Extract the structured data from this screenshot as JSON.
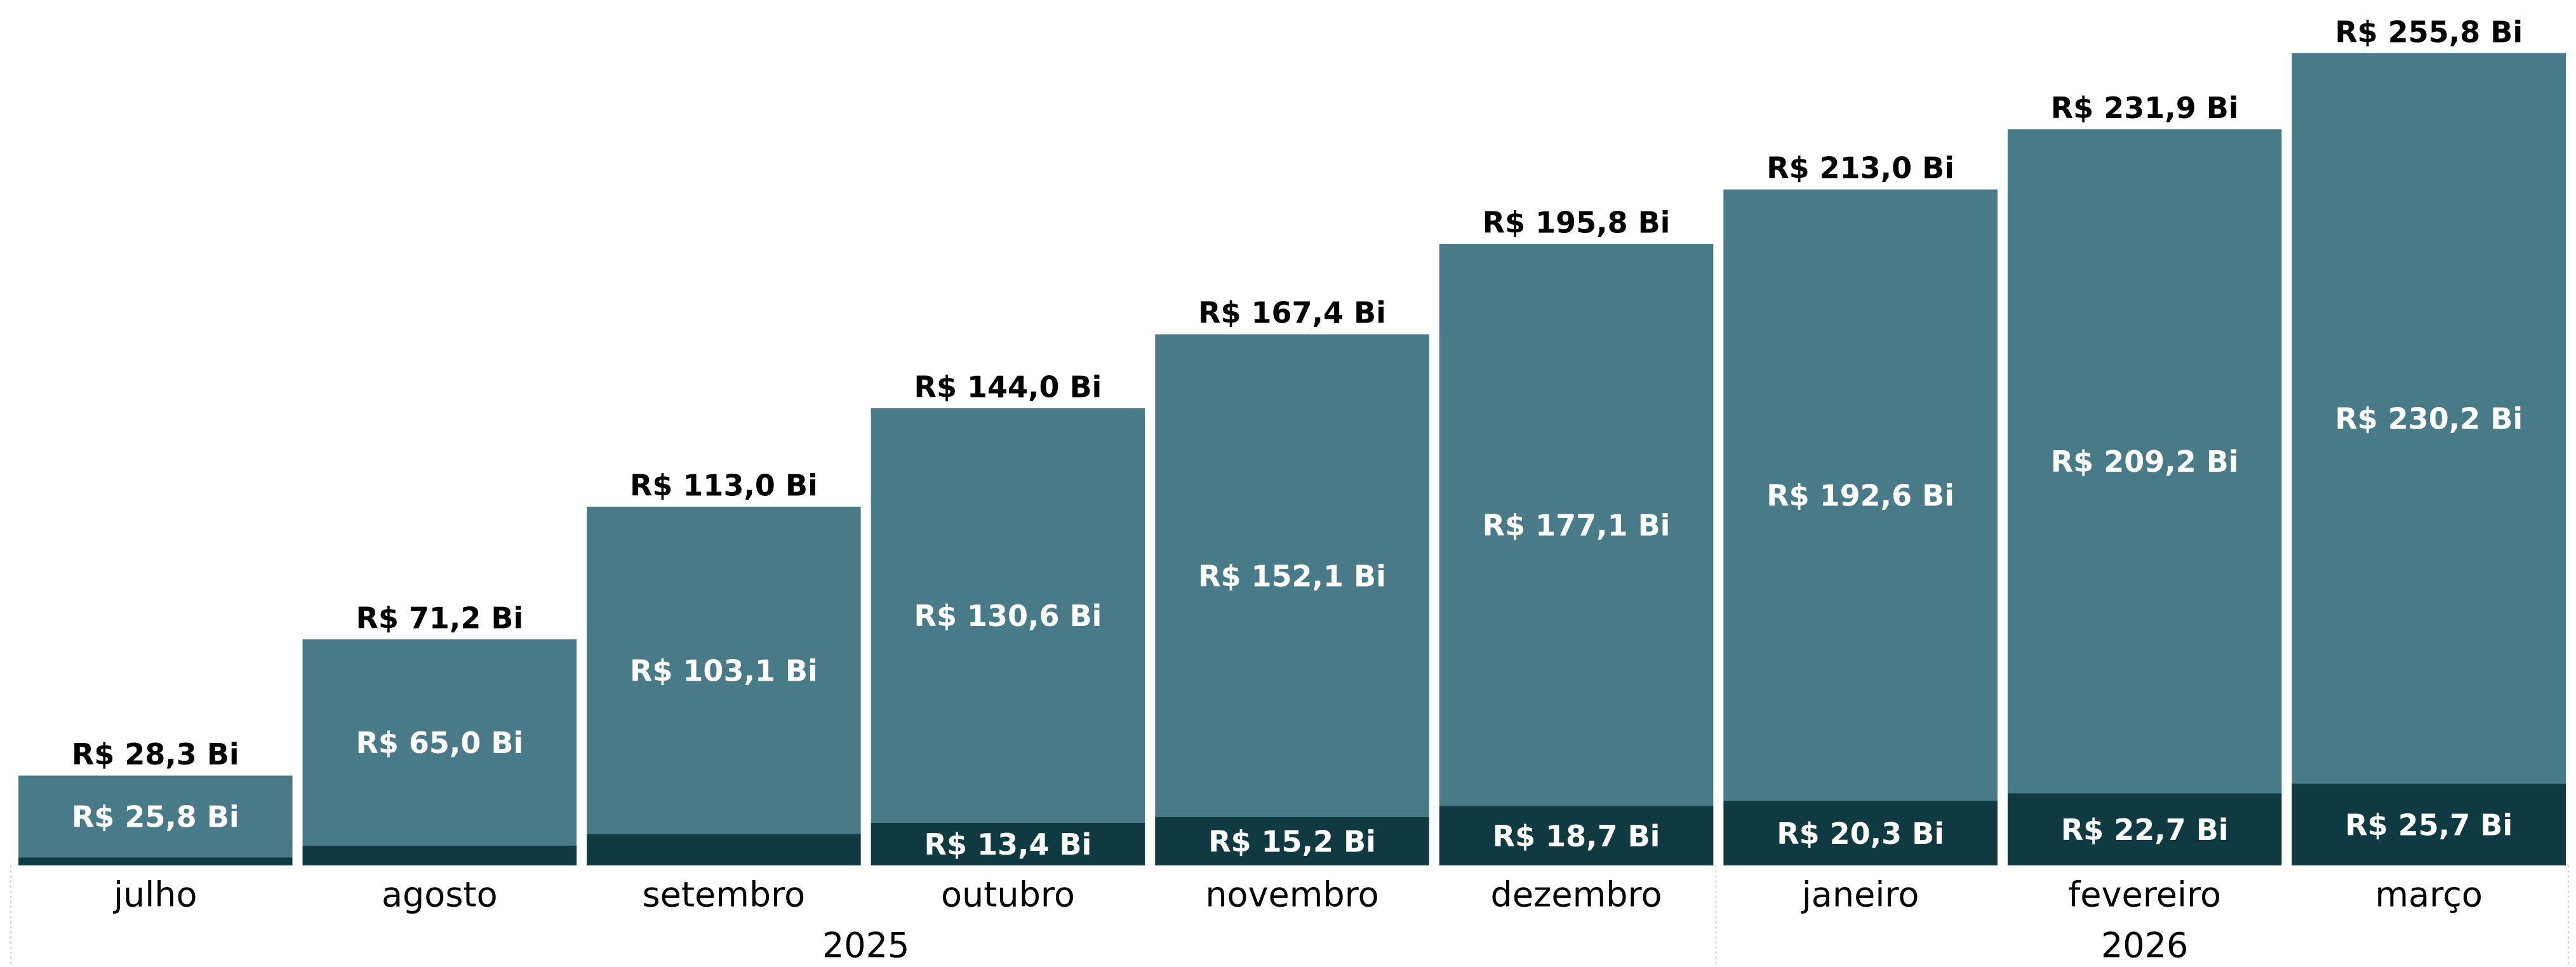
{
  "chart_data": {
    "type": "stacked_bar",
    "categories": [
      "julho",
      "agosto",
      "setembro",
      "outubro",
      "novembro",
      "dezembro",
      "janeiro",
      "fevereiro",
      "março"
    ],
    "years": [
      "2025",
      "2025",
      "2025",
      "2025",
      "2025",
      "2025",
      "2026",
      "2026",
      "2026"
    ],
    "series": [
      {
        "color": "#0f3a42",
        "values": [
          2.5,
          6.2,
          9.9,
          13.4,
          15.2,
          18.7,
          20.3,
          22.7,
          25.7
        ],
        "value_labels": [
          null,
          null,
          null,
          "R$ 13,4 Bi",
          "R$ 15,2 Bi",
          "R$ 18,7 Bi",
          "R$ 20,3 Bi",
          "R$ 22,7 Bi",
          "R$ 25,7 Bi"
        ]
      },
      {
        "color": "#487b87",
        "values": [
          25.8,
          65.0,
          103.1,
          130.6,
          152.1,
          177.1,
          192.6,
          209.2,
          230.2
        ],
        "value_labels": [
          "R$ 25,8 Bi",
          "R$ 65,0 Bi",
          "R$ 103,1 Bi",
          "R$ 130,6 Bi",
          "R$ 152,1 Bi",
          "R$ 177,1 Bi",
          "R$ 192,6 Bi",
          "R$ 209,2 Bi",
          "R$ 230,2 Bi"
        ]
      }
    ],
    "totals": [
      28.3,
      71.2,
      113.0,
      144.0,
      167.4,
      195.8,
      213.0,
      231.9,
      255.8
    ],
    "total_labels": [
      "R$ 28,3 Bi",
      "R$ 71,2 Bi",
      "R$ 113,0 Bi",
      "R$ 144,0 Bi",
      "R$ 167,4 Bi",
      "R$ 195,8 Bi",
      "R$ 213,0 Bi",
      "R$ 231,9 Bi",
      "R$ 255,8 Bi"
    ],
    "ylim": [
      0,
      260
    ]
  }
}
